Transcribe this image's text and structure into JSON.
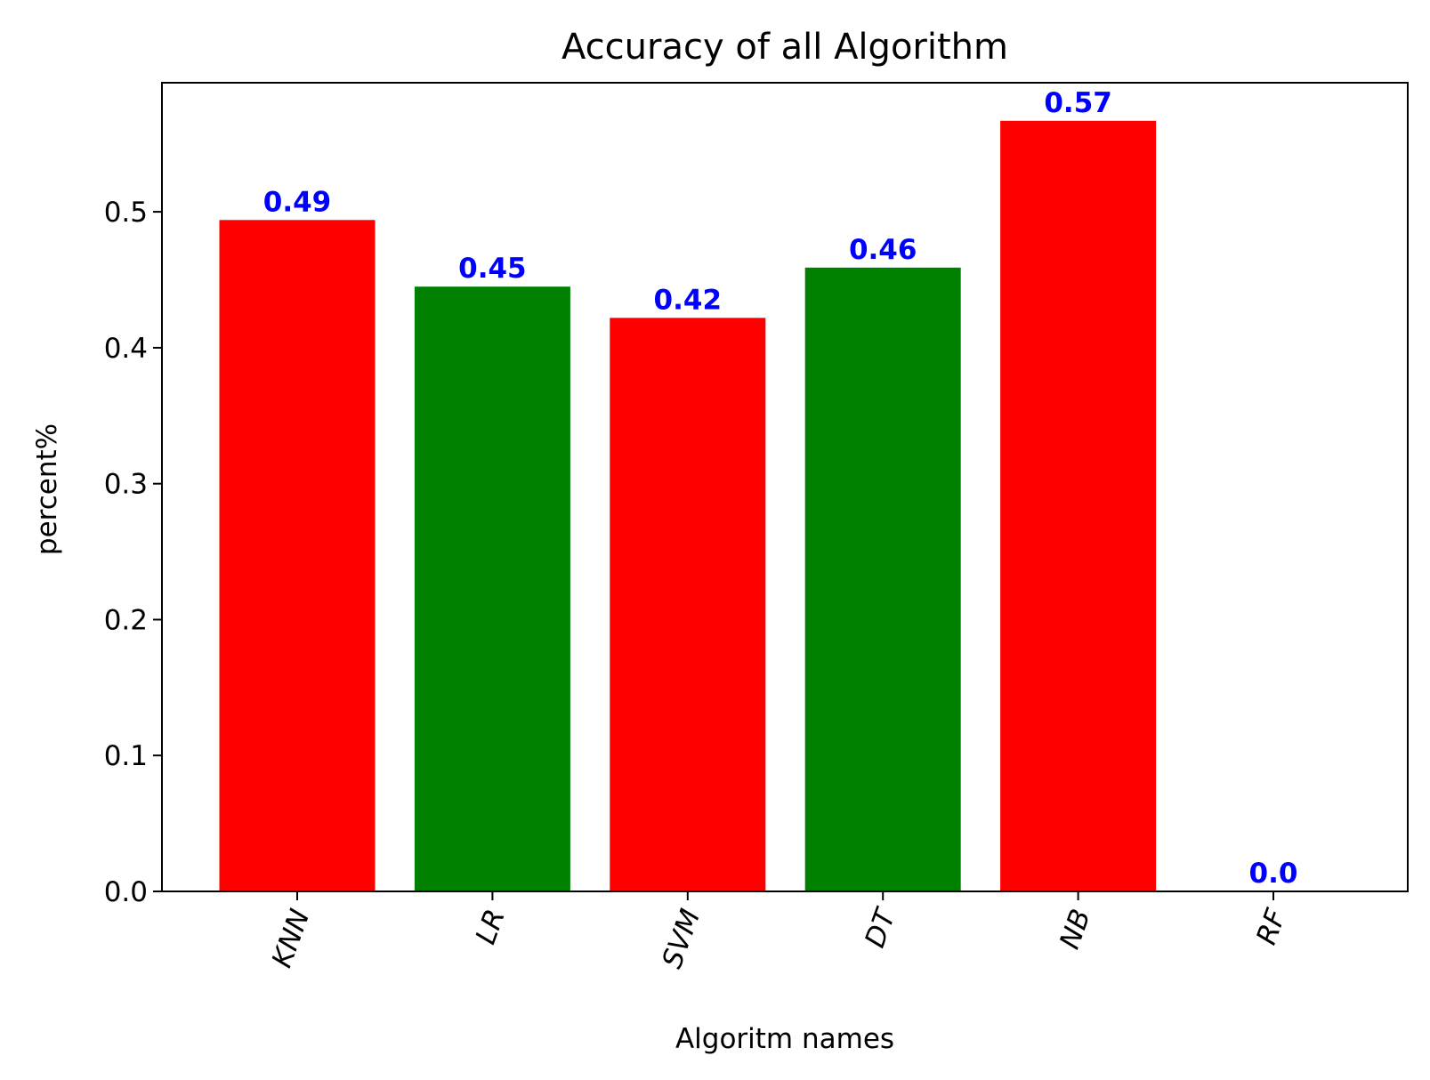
{
  "chart_data": {
    "type": "bar",
    "title": "Accuracy of all Algorithm",
    "xlabel": "Algoritm names",
    "ylabel": "percent%",
    "categories": [
      "KNN",
      "LR",
      "SVM",
      "DT",
      "NB",
      "RF"
    ],
    "values": [
      0.494,
      0.445,
      0.422,
      0.459,
      0.567,
      0.0
    ],
    "data_labels": [
      "0.49",
      "0.45",
      "0.42",
      "0.46",
      "0.57",
      "0.0"
    ],
    "bar_colors": [
      "#ff0000",
      "#008000",
      "#ff0000",
      "#008000",
      "#ff0000",
      "#ff0000"
    ],
    "label_color": "#0000ff",
    "ylim": [
      0,
      0.595
    ],
    "yticks": [
      0.0,
      0.1,
      0.2,
      0.3,
      0.4,
      0.5
    ],
    "ytick_labels": [
      "0.0",
      "0.1",
      "0.2",
      "0.3",
      "0.4",
      "0.5"
    ],
    "xtick_rotation": 70,
    "grid": false,
    "legend": "none"
  }
}
